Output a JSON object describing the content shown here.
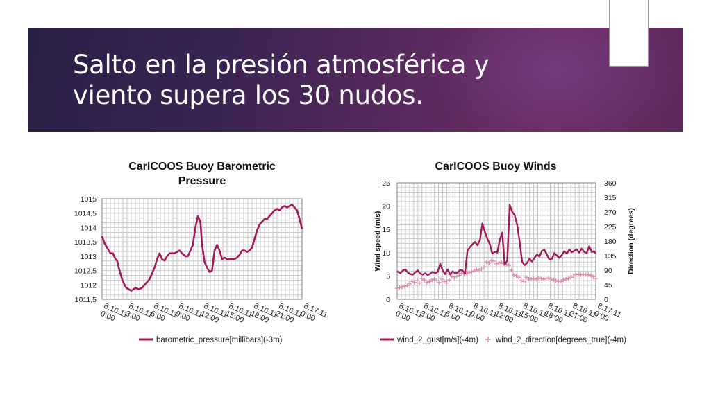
{
  "slide": {
    "title": "Salto en la presión atmosférica y viento supera los 30 nudos."
  },
  "colors": {
    "series_line": "#a3195b",
    "series_marker": "#d98aa8",
    "grid": "#c8c8c8",
    "axis": "#808080"
  },
  "chart_data": [
    {
      "type": "line",
      "title": "CarICOOS Buoy Barometric Pressure",
      "title_lines": [
        "CarICOOS Buoy Barometric",
        "Pressure"
      ],
      "xlabel": "",
      "ylabel": "",
      "x_tick_labels": [
        "8.16.11 0:00",
        "8.16.11 3:00",
        "8.16.11 6:00",
        "8.16.11 9:00",
        "8.16.11 12:00",
        "8.16.11 15:00",
        "8.16.11 18:00",
        "8.16.11 21:00",
        "8.17.11 0:00"
      ],
      "y_tick_labels": [
        "1011,5",
        "1012",
        "1012,5",
        "1013",
        "1013,5",
        "1014",
        "1014,5",
        "1015"
      ],
      "xlim": [
        0,
        24
      ],
      "ylim": [
        1011.5,
        1015
      ],
      "grid": true,
      "legend_position": "bottom",
      "series": [
        {
          "name": "barometric_pressure[millibars](-3m)",
          "x": [
            0,
            0.3,
            0.7,
            1.0,
            1.3,
            1.6,
            1.8,
            2.0,
            2.4,
            2.7,
            2.9,
            3.2,
            3.5,
            3.8,
            4.0,
            4.4,
            4.8,
            5.1,
            5.4,
            5.7,
            6.0,
            6.3,
            6.6,
            6.9,
            7.2,
            7.5,
            7.8,
            8.1,
            8.4,
            8.7,
            9.0,
            9.3,
            9.6,
            10.0,
            10.3,
            10.6,
            10.9,
            11.2,
            11.5,
            11.8,
            12.0,
            12.3,
            12.6,
            12.9,
            13.2,
            13.5,
            13.8,
            14.1,
            14.4,
            14.7,
            15.0,
            15.3,
            15.6,
            15.9,
            16.2,
            16.5,
            16.8,
            17.1,
            17.4,
            17.7,
            18.0,
            18.3,
            18.6,
            18.9,
            19.2,
            19.5,
            19.8,
            20.1,
            20.4,
            20.7,
            21.0,
            21.3,
            21.6,
            21.9,
            22.2,
            22.5,
            22.8,
            23.1,
            23.4,
            23.7,
            24.0
          ],
          "values": [
            1013.7,
            1013.45,
            1013.25,
            1013.1,
            1013.1,
            1012.9,
            1012.85,
            1012.6,
            1012.2,
            1012.0,
            1011.9,
            1011.85,
            1011.8,
            1011.85,
            1011.9,
            1011.85,
            1011.9,
            1012.0,
            1012.1,
            1012.2,
            1012.4,
            1012.6,
            1012.9,
            1013.1,
            1012.9,
            1012.85,
            1013.0,
            1013.1,
            1013.1,
            1013.1,
            1013.15,
            1013.2,
            1013.1,
            1013.0,
            1013.0,
            1013.2,
            1013.4,
            1014.0,
            1014.4,
            1014.2,
            1013.4,
            1012.8,
            1012.6,
            1012.45,
            1012.5,
            1013.2,
            1013.4,
            1013.2,
            1012.9,
            1012.95,
            1012.9,
            1012.9,
            1012.9,
            1012.9,
            1012.95,
            1013.05,
            1013.2,
            1013.2,
            1013.15,
            1013.2,
            1013.3,
            1013.6,
            1013.9,
            1014.1,
            1014.2,
            1014.3,
            1014.3,
            1014.4,
            1014.5,
            1014.6,
            1014.65,
            1014.6,
            1014.7,
            1014.75,
            1014.7,
            1014.75,
            1014.8,
            1014.7,
            1014.6,
            1014.3,
            1013.95
          ]
        }
      ]
    },
    {
      "type": "line",
      "title": "CarICOOS Buoy Winds",
      "title_lines": [
        "CarICOOS Buoy Winds"
      ],
      "xlabel": "",
      "ylabel": "Wind speed (m/s)",
      "y2label": "Direction (degrees)",
      "x_tick_labels": [
        "8.16.11 0:00",
        "8.16.11 3:00",
        "8.16.11 6:00",
        "8.16.11 9:00",
        "8.16.11 12:00",
        "8.16.11 15:00",
        "8.16.11 18:00",
        "8.16.11 21:00",
        "8.17.11 0:00"
      ],
      "y_tick_labels": [
        "0",
        "5",
        "10",
        "15",
        "20",
        "25"
      ],
      "y2_tick_labels": [
        "0",
        "45",
        "90",
        "135",
        "180",
        "225",
        "270",
        "315",
        "360"
      ],
      "xlim": [
        0,
        24
      ],
      "ylim": [
        0,
        25
      ],
      "y2lim": [
        0,
        360
      ],
      "grid": true,
      "legend_position": "bottom",
      "series": [
        {
          "name": "wind_2_gust[m/s](-4m)",
          "axis": "left",
          "style": "line",
          "x": [
            0,
            0.4,
            0.7,
            1.0,
            1.3,
            1.6,
            1.9,
            2.2,
            2.5,
            2.8,
            3.1,
            3.4,
            3.7,
            4.0,
            4.3,
            4.6,
            4.9,
            5.2,
            5.5,
            5.8,
            6.1,
            6.4,
            6.7,
            7.0,
            7.3,
            7.6,
            7.9,
            8.2,
            8.5,
            8.8,
            9.1,
            9.4,
            9.7,
            10.0,
            10.3,
            10.6,
            10.9,
            11.2,
            11.5,
            11.8,
            12.1,
            12.4,
            12.7,
            13.0,
            13.3,
            13.6,
            13.9,
            14.2,
            14.5,
            14.8,
            15.1,
            15.4,
            15.7,
            16.0,
            16.3,
            16.6,
            16.9,
            17.2,
            17.5,
            17.8,
            18.1,
            18.4,
            18.7,
            19.0,
            19.3,
            19.6,
            19.9,
            20.2,
            20.5,
            20.8,
            21.1,
            21.4,
            21.7,
            22.0,
            22.3,
            22.6,
            22.9,
            23.2,
            23.5,
            23.8,
            24.0
          ],
          "values": [
            6.0,
            5.6,
            6.2,
            6.4,
            5.7,
            5.4,
            5.3,
            5.8,
            6.2,
            5.5,
            5.3,
            5.6,
            5.2,
            5.5,
            5.9,
            5.6,
            5.9,
            7.6,
            6.2,
            5.4,
            6.4,
            5.3,
            6.0,
            5.6,
            5.7,
            6.3,
            6.2,
            5.5,
            10.5,
            11.2,
            11.8,
            12.3,
            11.6,
            12.7,
            16.3,
            14.5,
            13.0,
            11.8,
            9.8,
            10.2,
            10.0,
            12.8,
            14.3,
            7.4,
            8.3,
            20.3,
            18.8,
            18.1,
            16.0,
            12.4,
            8.1,
            7.3,
            7.8,
            8.7,
            8.1,
            8.9,
            9.6,
            9.2,
            10.4,
            10.6,
            9.6,
            8.5,
            8.7,
            9.9,
            9.4,
            8.9,
            9.5,
            10.3,
            9.8,
            10.7,
            10.1,
            10.4,
            10.7,
            10.0,
            10.9,
            10.2,
            9.9,
            11.4,
            10.2,
            10.3,
            9.8
          ]
        },
        {
          "name": "wind_2_direction[degrees_true](-4m)",
          "axis": "right",
          "style": "markers",
          "x": [
            0,
            0.3,
            0.6,
            0.9,
            1.2,
            1.5,
            1.8,
            2.1,
            2.4,
            2.7,
            3.0,
            3.3,
            3.6,
            3.9,
            4.2,
            4.5,
            4.8,
            5.1,
            5.4,
            5.7,
            6.0,
            6.3,
            6.6,
            6.9,
            7.2,
            7.5,
            7.8,
            8.1,
            8.4,
            8.7,
            9.0,
            9.3,
            9.6,
            9.9,
            10.2,
            10.5,
            10.8,
            11.1,
            11.4,
            11.7,
            12.0,
            12.3,
            12.6,
            12.9,
            13.2,
            13.5,
            13.8,
            14.1,
            14.4,
            14.7,
            15.0,
            15.3,
            15.6,
            15.9,
            16.2,
            16.5,
            16.8,
            17.1,
            17.4,
            17.7,
            18.0,
            18.3,
            18.6,
            18.9,
            19.2,
            19.5,
            19.8,
            20.1,
            20.4,
            20.7,
            21.0,
            21.3,
            21.6,
            21.9,
            22.2,
            22.5,
            22.8,
            23.1,
            23.4,
            23.7,
            24.0
          ],
          "values": [
            34,
            36,
            38,
            40,
            42,
            48,
            55,
            52,
            58,
            50,
            64,
            60,
            52,
            55,
            60,
            62,
            58,
            52,
            62,
            55,
            50,
            60,
            70,
            66,
            70,
            74,
            80,
            78,
            80,
            82,
            85,
            88,
            92,
            90,
            94,
            100,
            115,
            112,
            120,
            118,
            110,
            112,
            115,
            110,
            108,
            105,
            90,
            75,
            72,
            68,
            58,
            55,
            68,
            62,
            62,
            64,
            62,
            66,
            64,
            62,
            64,
            66,
            62,
            60,
            58,
            56,
            55,
            60,
            62,
            64,
            68,
            72,
            76,
            78,
            76,
            78,
            76,
            76,
            74,
            70,
            64
          ]
        }
      ]
    }
  ]
}
